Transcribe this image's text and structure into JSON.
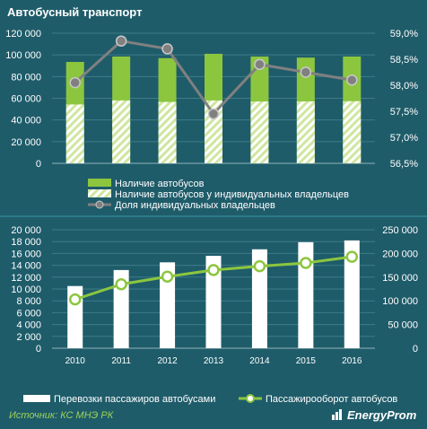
{
  "title": "Автобусный  транспорт",
  "source": "Источник: КС МНЭ РК",
  "brand": "EnergyProm",
  "colors": {
    "green": "#8cc63f",
    "white": "#ffffff",
    "gray": "#808080",
    "background": "#1f5c6a",
    "grid": "#3f7b89",
    "text": "#ffffff"
  },
  "chart_data": [
    {
      "type": "bar",
      "categories": [
        "2010",
        "2011",
        "2012",
        "2013",
        "2014",
        "2015",
        "2016"
      ],
      "series": [
        {
          "name": "Наличие автобусов",
          "kind": "bar",
          "axis": "left",
          "values": [
            93500,
            98500,
            97000,
            101000,
            98500,
            97500,
            98500
          ]
        },
        {
          "name": "Наличие автобусов у индивидуальных владельцев",
          "kind": "bar-hatched",
          "axis": "left",
          "values": [
            54300,
            58000,
            56600,
            58000,
            57000,
            57100,
            57300
          ]
        },
        {
          "name": "Доля индивидуальных владельцев",
          "kind": "line",
          "axis": "right",
          "values": [
            58.05,
            58.85,
            58.7,
            57.45,
            58.4,
            58.25,
            58.1
          ]
        }
      ],
      "yticks_left": [
        "0",
        "20 000",
        "40 000",
        "60 000",
        "80 000",
        "100 000",
        "120 000"
      ],
      "yticks_right": [
        "56,5%",
        "57,0%",
        "57,5%",
        "58,0%",
        "58,5%",
        "59,0%"
      ],
      "ylim_left": [
        0,
        120000
      ],
      "ylim_right": [
        56.5,
        59.0
      ],
      "legend": "bottom"
    },
    {
      "type": "bar",
      "categories": [
        "2010",
        "2011",
        "2012",
        "2013",
        "2014",
        "2015",
        "2016"
      ],
      "series": [
        {
          "name": "Перевозки пассажиров автобусами",
          "kind": "bar",
          "axis": "left",
          "values": [
            10500,
            13200,
            14500,
            15600,
            16700,
            17900,
            18200
          ]
        },
        {
          "name": "Пассажирооборот автобусов",
          "kind": "line",
          "axis": "right",
          "values": [
            103000,
            135000,
            151000,
            165000,
            173000,
            180000,
            193000
          ]
        }
      ],
      "yticks_left": [
        "0",
        "2 000",
        "4 000",
        "6 000",
        "8 000",
        "10 000",
        "12 000",
        "14 000",
        "16 000",
        "18 000",
        "20 000"
      ],
      "yticks_right": [
        "0",
        "50 000",
        "100 000",
        "150 000",
        "200 000",
        "250 000"
      ],
      "ylim_left": [
        0,
        20000
      ],
      "ylim_right": [
        0,
        250000
      ],
      "legend": "bottom"
    }
  ]
}
